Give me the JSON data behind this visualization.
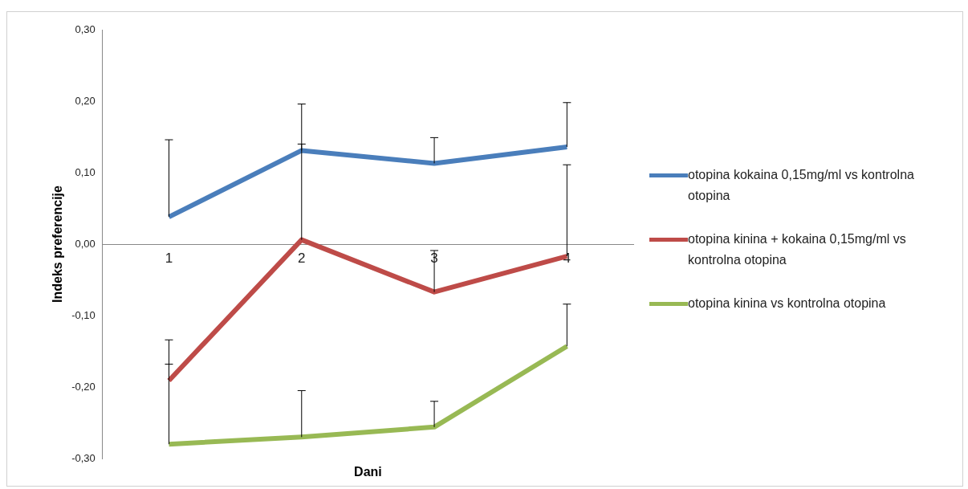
{
  "chart_data": {
    "type": "line",
    "xlabel": "Dani",
    "ylabel": "Indeks preferencije",
    "categories": [
      "1",
      "2",
      "3",
      "4"
    ],
    "ylim": [
      -0.3,
      0.3
    ],
    "yticks": [
      {
        "value": -0.3,
        "label": "-0,30"
      },
      {
        "value": -0.2,
        "label": "-0,20"
      },
      {
        "value": -0.1,
        "label": "-0,10"
      },
      {
        "value": 0,
        "label": "0,00"
      },
      {
        "value": 0.1,
        "label": "0,10"
      },
      {
        "value": 0.2,
        "label": "0,20"
      },
      {
        "value": 0.3,
        "label": "0,30"
      }
    ],
    "grid": false,
    "legend": "right",
    "marker": "none",
    "line_style": "solid",
    "series": [
      {
        "name": "otopina kokaina 0,15mg/ml vs kontrolna otopina",
        "color": "#4a7ebb",
        "values": [
          0.038,
          0.131,
          0.113,
          0.136
        ],
        "errors": [
          [
            0.038,
            0.146
          ],
          [
            0.131,
            0.196
          ],
          [
            0.113,
            0.149
          ],
          [
            0.136,
            0.198
          ]
        ]
      },
      {
        "name": "otopina kinina + kokaina 0,15mg/ml vs kontrolna otopina",
        "color": "#be4b48",
        "values": [
          -0.191,
          0.006,
          -0.067,
          -0.017
        ],
        "errors": [
          [
            -0.191,
            -0.134
          ],
          [
            0.006,
            0.14
          ],
          [
            -0.067,
            -0.009
          ],
          [
            -0.017,
            0.111
          ]
        ]
      },
      {
        "name": "otopina kinina vs kontrolna otopina",
        "color": "#98b954",
        "values": [
          -0.28,
          -0.27,
          -0.256,
          -0.143
        ],
        "errors": [
          [
            -0.28,
            -0.168
          ],
          [
            -0.27,
            -0.205
          ],
          [
            -0.256,
            -0.22
          ],
          [
            -0.143,
            -0.084
          ]
        ]
      }
    ]
  }
}
